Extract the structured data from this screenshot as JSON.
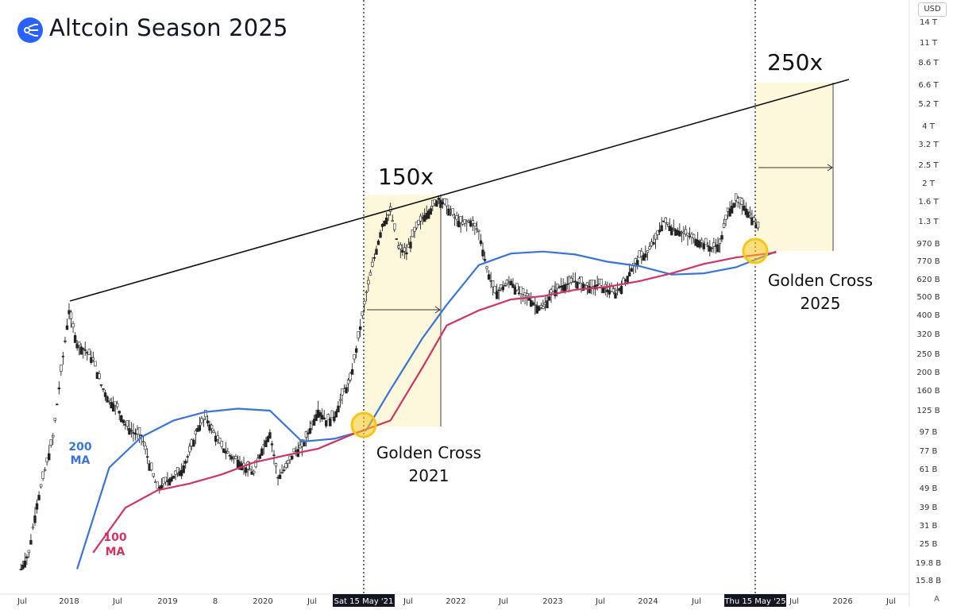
{
  "header": {
    "title": "Altcoin Season 2025",
    "currency": "USD",
    "auto_scale_button": "A"
  },
  "annotations": {
    "mult_2021": "150x",
    "mult_2025": "250x",
    "gc_2021_line1": "Golden Cross",
    "gc_2021_line2": "2021",
    "gc_2025_line1": "Golden Cross",
    "gc_2025_line2": "2025",
    "ma200_line1": "200",
    "ma200_line2": "MA",
    "ma100_line1": "100",
    "ma100_line2": "MA",
    "date_marker_2021": "Sat 15 May '21",
    "date_marker_2025": "Thu 15 May '25"
  },
  "colors": {
    "ma200": "#3a74d8",
    "ma100": "#d0345f",
    "highlight": "#fdf8dc",
    "golden_circle": "#f5c518",
    "candle": "#222222"
  },
  "chart_data": {
    "type": "line",
    "title": "Altcoin Season 2025",
    "y_scale": "log",
    "currency": "USD",
    "y_ticks": [
      "14 T",
      "11 T",
      "8.6 T",
      "6.6 T",
      "5.2 T",
      "4 T",
      "3.2 T",
      "2.5 T",
      "2 T",
      "1.6 T",
      "1.3 T",
      "970 B",
      "770 B",
      "620 B",
      "500 B",
      "400 B",
      "320 B",
      "250 B",
      "200 B",
      "160 B",
      "125 B",
      "97 B",
      "77 B",
      "61 B",
      "49 B",
      "39 B",
      "31 B",
      "25 B",
      "19.8 B",
      "15.8 B"
    ],
    "x_ticks": [
      "Jul",
      "2018",
      "Jul",
      "2019",
      "8",
      "2020",
      "Jul",
      "Jul",
      "2022",
      "Jul",
      "2023",
      "Jul",
      "2024",
      "Jul",
      "Jul",
      "2026",
      "Jul"
    ],
    "series": [
      {
        "name": "200 MA",
        "x": [
          "2018-02",
          "2018-06",
          "2018-10",
          "2019-02",
          "2019-06",
          "2019-10",
          "2020-02",
          "2020-06",
          "2020-10",
          "2021-02",
          "2021-05",
          "2021-09",
          "2021-12",
          "2022-04",
          "2022-08",
          "2022-12",
          "2023-04",
          "2023-08",
          "2023-12",
          "2024-04",
          "2024-08",
          "2024-12",
          "2025-05"
        ],
        "y": [
          18,
          62,
          90,
          110,
          122,
          127,
          124,
          85,
          88,
          98,
          160,
          300,
          450,
          730,
          840,
          860,
          830,
          760,
          720,
          650,
          660,
          710,
          860
        ]
      },
      {
        "name": "100 MA",
        "x": [
          "2018-04",
          "2018-08",
          "2018-12",
          "2019-04",
          "2019-08",
          "2019-12",
          "2020-04",
          "2020-08",
          "2020-12",
          "2021-05",
          "2021-09",
          "2021-12",
          "2022-04",
          "2022-08",
          "2022-12",
          "2023-04",
          "2023-08",
          "2023-12",
          "2024-04",
          "2024-08",
          "2024-12",
          "2025-05"
        ],
        "y": [
          22,
          38,
          47,
          51,
          57,
          66,
          72,
          78,
          92,
          110,
          210,
          350,
          420,
          480,
          500,
          540,
          560,
          600,
          660,
          740,
          800,
          850
        ]
      }
    ],
    "trendline": {
      "x": [
        "2018-01",
        "2025-09"
      ],
      "y": [
        470,
        6600
      ]
    },
    "events": [
      {
        "label": "Golden Cross 2021",
        "date": "2021-05-15",
        "multiple": "150x"
      },
      {
        "label": "Golden Cross 2025",
        "date": "2025-05-15",
        "multiple": "250x"
      }
    ]
  }
}
